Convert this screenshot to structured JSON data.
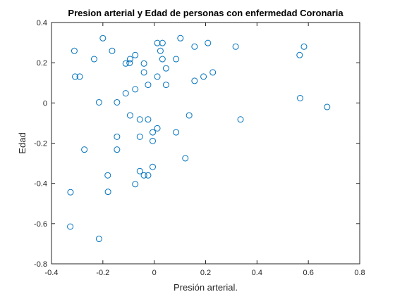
{
  "chart_data": {
    "type": "scatter",
    "title": "Presion arterial y Edad de personas con enfermedad Coronaria",
    "xlabel": "Presión arterial.",
    "ylabel": "Edad",
    "xlim": [
      -0.4,
      0.8
    ],
    "ylim": [
      -0.8,
      0.4
    ],
    "xticks": [
      -0.4,
      -0.2,
      0,
      0.2,
      0.4,
      0.6,
      0.8
    ],
    "xtick_labels": [
      "-0.4",
      "-0.2",
      "0",
      "0.2",
      "0.4",
      "0.6",
      "0.8"
    ],
    "yticks": [
      -0.8,
      -0.6,
      -0.4,
      -0.2,
      0,
      0.2,
      0.4
    ],
    "ytick_labels": [
      "-0.8",
      "-0.6",
      "-0.4",
      "-0.2",
      "0",
      "0.2",
      "0.4"
    ],
    "grid": false,
    "marker": "circle-open",
    "color": "#0072BD",
    "points": [
      [
        -0.311,
        0.259
      ],
      [
        -0.308,
        0.131
      ],
      [
        -0.29,
        0.131
      ],
      [
        -0.272,
        -0.232
      ],
      [
        -0.326,
        -0.444
      ],
      [
        -0.327,
        -0.615
      ],
      [
        -0.234,
        0.218
      ],
      [
        -0.215,
        0.003
      ],
      [
        -0.215,
        -0.676
      ],
      [
        -0.2,
        0.322
      ],
      [
        -0.181,
        -0.36
      ],
      [
        -0.18,
        -0.442
      ],
      [
        -0.164,
        0.259
      ],
      [
        -0.145,
        0.003
      ],
      [
        -0.145,
        -0.168
      ],
      [
        -0.145,
        -0.232
      ],
      [
        -0.111,
        0.048
      ],
      [
        -0.111,
        0.196
      ],
      [
        -0.096,
        0.199
      ],
      [
        -0.094,
        0.218
      ],
      [
        -0.094,
        -0.062
      ],
      [
        -0.074,
        0.238
      ],
      [
        -0.074,
        0.068
      ],
      [
        -0.074,
        -0.404
      ],
      [
        -0.056,
        -0.082
      ],
      [
        -0.056,
        -0.168
      ],
      [
        -0.056,
        -0.339
      ],
      [
        -0.04,
        0.196
      ],
      [
        -0.04,
        0.152
      ],
      [
        -0.04,
        -0.36
      ],
      [
        -0.024,
        0.09
      ],
      [
        -0.024,
        -0.082
      ],
      [
        -0.024,
        -0.36
      ],
      [
        -0.006,
        -0.146
      ],
      [
        -0.006,
        -0.189
      ],
      [
        -0.006,
        -0.318
      ],
      [
        0.012,
        0.298
      ],
      [
        0.012,
        0.131
      ],
      [
        0.012,
        -0.126
      ],
      [
        0.024,
        0.259
      ],
      [
        0.032,
        0.298
      ],
      [
        0.032,
        0.218
      ],
      [
        0.046,
        0.172
      ],
      [
        0.046,
        0.09
      ],
      [
        0.085,
        0.218
      ],
      [
        0.085,
        -0.146
      ],
      [
        0.102,
        0.322
      ],
      [
        0.121,
        -0.275
      ],
      [
        0.136,
        -0.062
      ],
      [
        0.157,
        0.28
      ],
      [
        0.157,
        0.11
      ],
      [
        0.192,
        0.131
      ],
      [
        0.209,
        0.298
      ],
      [
        0.228,
        0.152
      ],
      [
        0.317,
        0.28
      ],
      [
        0.336,
        -0.082
      ],
      [
        0.566,
        0.238
      ],
      [
        0.568,
        0.024
      ],
      [
        0.583,
        0.28
      ],
      [
        0.673,
        -0.02
      ]
    ]
  }
}
